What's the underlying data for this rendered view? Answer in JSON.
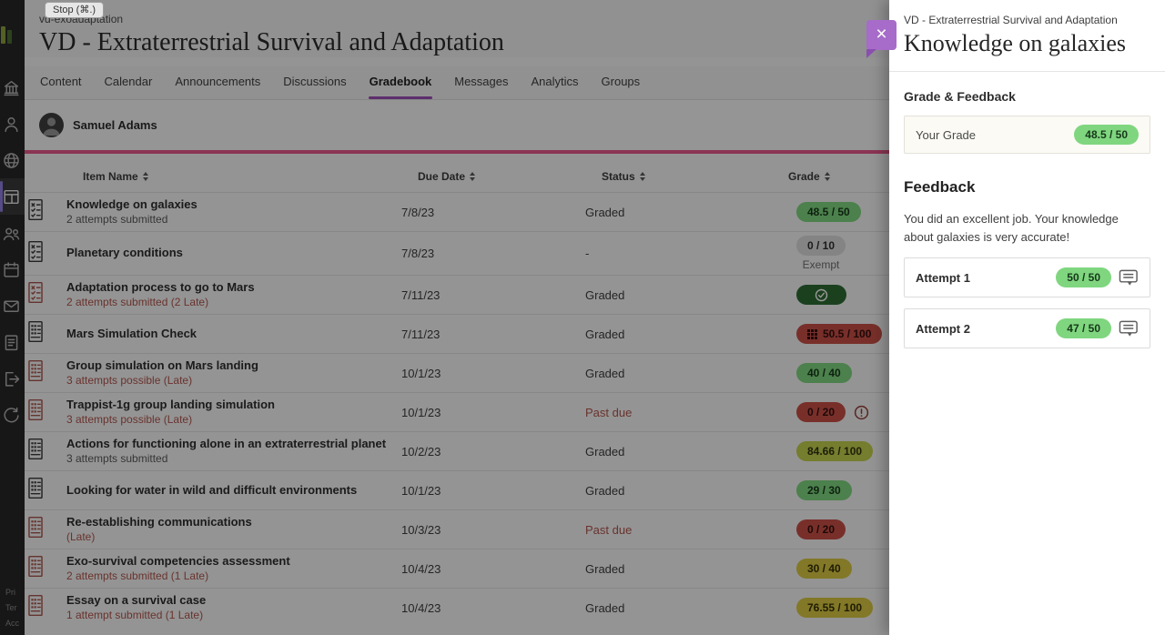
{
  "tooltip": {
    "label": "Stop (⌘.)"
  },
  "sidebar": {
    "items": [
      {
        "icon": "institution"
      },
      {
        "icon": "profile"
      },
      {
        "icon": "globe"
      },
      {
        "icon": "courses",
        "active": true
      },
      {
        "icon": "organizations"
      },
      {
        "icon": "calendar"
      },
      {
        "icon": "messages"
      },
      {
        "icon": "grades"
      },
      {
        "icon": "sign-out"
      },
      {
        "icon": "return"
      }
    ],
    "footer_links": [
      "Pri",
      "Ter",
      "Acc"
    ]
  },
  "header": {
    "course_code": "vd-exoadaptation",
    "course_title": "VD - Extraterrestrial Survival and Adaptation"
  },
  "tabs": [
    {
      "label": "Content"
    },
    {
      "label": "Calendar"
    },
    {
      "label": "Announcements"
    },
    {
      "label": "Discussions"
    },
    {
      "label": "Gradebook",
      "active": true
    },
    {
      "label": "Messages"
    },
    {
      "label": "Analytics"
    },
    {
      "label": "Groups"
    }
  ],
  "student": {
    "name": "Samuel Adams"
  },
  "table": {
    "columns": [
      "Item Name",
      "Due Date",
      "Status",
      "Grade"
    ],
    "rows": [
      {
        "name": "Knowledge on galaxies",
        "sub": "2 attempts submitted",
        "sub_late": false,
        "icon": "quiz",
        "icon_late": false,
        "due": "7/8/23",
        "status": "Graded",
        "status_late": false,
        "grade": {
          "text": "48.5 / 50",
          "color": "green"
        }
      },
      {
        "name": "Planetary conditions",
        "sub": "",
        "sub_late": false,
        "icon": "quiz",
        "icon_late": false,
        "due": "7/8/23",
        "status": "-",
        "status_late": false,
        "grade": {
          "text": "0 / 10",
          "color": "gray",
          "note": "Exempt"
        }
      },
      {
        "name": "Adaptation process to go to Mars",
        "sub": "2 attempts submitted (2 Late)",
        "sub_late": true,
        "icon": "quiz",
        "icon_late": true,
        "due": "7/11/23",
        "status": "Graded",
        "status_late": false,
        "grade": {
          "type": "complete",
          "color": "darkgreen"
        }
      },
      {
        "name": "Mars Simulation Check",
        "sub": "",
        "sub_late": false,
        "icon": "assignment",
        "icon_late": false,
        "due": "7/11/23",
        "status": "Graded",
        "status_late": false,
        "grade": {
          "text": "50.5 / 100",
          "color": "red",
          "rubric_icon": true
        }
      },
      {
        "name": "Group simulation on Mars landing",
        "sub": "3 attempts possible (Late)",
        "sub_late": true,
        "icon": "assignment",
        "icon_late": true,
        "due": "10/1/23",
        "status": "Graded",
        "status_late": false,
        "grade": {
          "text": "40 / 40",
          "color": "green"
        }
      },
      {
        "name": "Trappist-1g group landing simulation",
        "sub": "3 attempts possible (Late)",
        "sub_late": true,
        "icon": "assignment",
        "icon_late": true,
        "due": "10/1/23",
        "status": "Past due",
        "status_late": true,
        "grade": {
          "text": "0 / 20",
          "color": "red",
          "alert": true
        }
      },
      {
        "name": "Actions for functioning alone in an extraterrestrial planet",
        "sub": "3 attempts submitted",
        "sub_late": false,
        "icon": "assignment",
        "icon_late": false,
        "due": "10/2/23",
        "status": "Graded",
        "status_late": false,
        "grade": {
          "text": "84.66 / 100",
          "color": "lime"
        }
      },
      {
        "name": "Looking for water in wild and difficult environments",
        "sub": "",
        "sub_late": false,
        "icon": "assignment",
        "icon_late": false,
        "due": "10/1/23",
        "status": "Graded",
        "status_late": false,
        "grade": {
          "text": "29 / 30",
          "color": "green"
        }
      },
      {
        "name": "Re-establishing communications",
        "sub": "(Late)",
        "sub_late": true,
        "icon": "assignment",
        "icon_late": true,
        "due": "10/3/23",
        "status": "Past due",
        "status_late": true,
        "grade": {
          "text": "0 / 20",
          "color": "red"
        }
      },
      {
        "name": "Exo-survival competencies assessment",
        "sub": "2 attempts submitted (1 Late)",
        "sub_late": true,
        "icon": "assignment",
        "icon_late": true,
        "due": "10/4/23",
        "status": "Graded",
        "status_late": false,
        "grade": {
          "text": "30 / 40",
          "color": "yellow"
        }
      },
      {
        "name": "Essay on a survival case",
        "sub": "1 attempt submitted (1 Late)",
        "sub_late": true,
        "icon": "assignment",
        "icon_late": true,
        "due": "10/4/23",
        "status": "Graded",
        "status_late": false,
        "grade": {
          "text": "76.55 / 100",
          "color": "yellow"
        }
      }
    ]
  },
  "panel": {
    "context": "VD - Extraterrestrial Survival and Adaptation",
    "title": "Knowledge on galaxies",
    "close_label": "×",
    "grade_section_title": "Grade & Feedback",
    "your_grade_label": "Your Grade",
    "your_grade": "48.5 / 50",
    "your_grade_color": "green",
    "feedback_title": "Feedback",
    "feedback_text": "You did an excellent job. Your knowledge about galaxies is very accurate!",
    "attempts": [
      {
        "label": "Attempt 1",
        "grade": "50 / 50",
        "color": "green"
      },
      {
        "label": "Attempt 2",
        "grade": "47 / 50",
        "color": "green"
      }
    ]
  },
  "colors": {
    "accent_purple": "#9a4db4",
    "accent_pink": "#e8578a",
    "close_purple": "#a76bc9",
    "pill_green": "#7fd67f",
    "pill_gray": "#dcdcdc",
    "pill_dark_green": "#2e6b33",
    "pill_red": "#c94f46",
    "pill_lime": "#c3d14e",
    "pill_yellow": "#d9c841",
    "late_text": "#b0554d",
    "sidenav_bg": "#272727"
  }
}
